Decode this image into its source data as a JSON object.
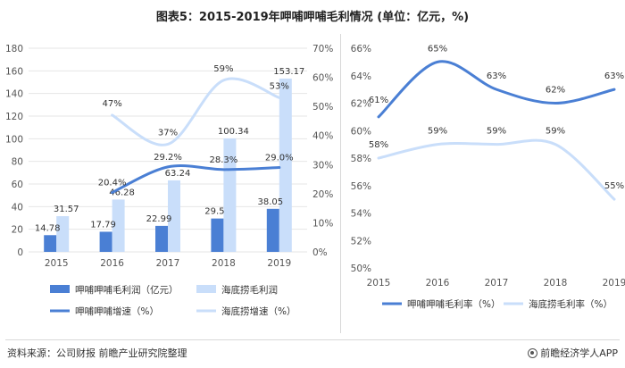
{
  "title": "图表5：2015-2019年呷哺呷哺毛利情况 (单位：亿元，%)",
  "footer": {
    "source": "资料来源：公司财报 前瞻产业研究院整理",
    "brand": "前瞻经济学人APP"
  },
  "colors": {
    "dark_blue": "#4a7fd4",
    "light_blue": "#c9defa",
    "gridline": "#e6e6e6",
    "axis_text": "#555555"
  },
  "chart_data": [
    {
      "type": "bar+line",
      "categories": [
        "2015",
        "2016",
        "2017",
        "2018",
        "2019"
      ],
      "ylim_left": [
        0,
        180
      ],
      "yticks_left": [
        0,
        20,
        40,
        60,
        80,
        100,
        120,
        140,
        160,
        180
      ],
      "ylim_right": [
        0,
        70
      ],
      "yticks_right": [
        "0%",
        "10%",
        "20%",
        "30%",
        "40%",
        "50%",
        "60%",
        "70%"
      ],
      "series": [
        {
          "name": "呷哺呷哺毛利润（亿元）",
          "kind": "bar",
          "axis": "left",
          "color": "#4a7fd4",
          "values": [
            14.78,
            17.79,
            22.99,
            29.5,
            38.05
          ],
          "labels": [
            "14.78",
            "17.79",
            "22.99",
            "29.5",
            "38.05"
          ]
        },
        {
          "name": "海底捞毛利润",
          "kind": "bar",
          "axis": "left",
          "color": "#c9defa",
          "values": [
            31.57,
            46.28,
            63.24,
            100.34,
            153.17
          ],
          "labels": [
            "31.57",
            "46.28",
            "63.24",
            "100.34",
            "153.17"
          ]
        },
        {
          "name": "呷哺呷哺增速（%）",
          "kind": "line",
          "axis": "right",
          "color": "#4a7fd4",
          "x": [
            "2016",
            "2017",
            "2018",
            "2019"
          ],
          "values": [
            20.4,
            29.2,
            28.3,
            29.0
          ],
          "labels": [
            "20.4%",
            "29.2%",
            "28.3%",
            "29.0%"
          ]
        },
        {
          "name": "海底捞增速（%）",
          "kind": "line",
          "axis": "right",
          "color": "#c9defa",
          "x": [
            "2016",
            "2017",
            "2018",
            "2019"
          ],
          "values": [
            47,
            37,
            59,
            53
          ],
          "labels": [
            "47%",
            "37%",
            "59%",
            "53%"
          ]
        }
      ],
      "legend_placement": "bottom"
    },
    {
      "type": "line",
      "categories": [
        "2015",
        "2016",
        "2017",
        "2018",
        "2019"
      ],
      "ylim": [
        50,
        66
      ],
      "yticks": [
        "50%",
        "52%",
        "54%",
        "56%",
        "58%",
        "60%",
        "62%",
        "64%",
        "66%"
      ],
      "series": [
        {
          "name": "呷哺呷哺毛利率（%）",
          "color": "#4a7fd4",
          "values": [
            61,
            65,
            63,
            62,
            63
          ],
          "labels": [
            "61%",
            "65%",
            "63%",
            "62%",
            "63%"
          ]
        },
        {
          "name": "海底捞毛利率（%）",
          "color": "#c9defa",
          "values": [
            58,
            59,
            59,
            59,
            55
          ],
          "labels": [
            "58%",
            "59%",
            "59%",
            "59%",
            "55%"
          ]
        }
      ],
      "legend_placement": "bottom"
    }
  ]
}
